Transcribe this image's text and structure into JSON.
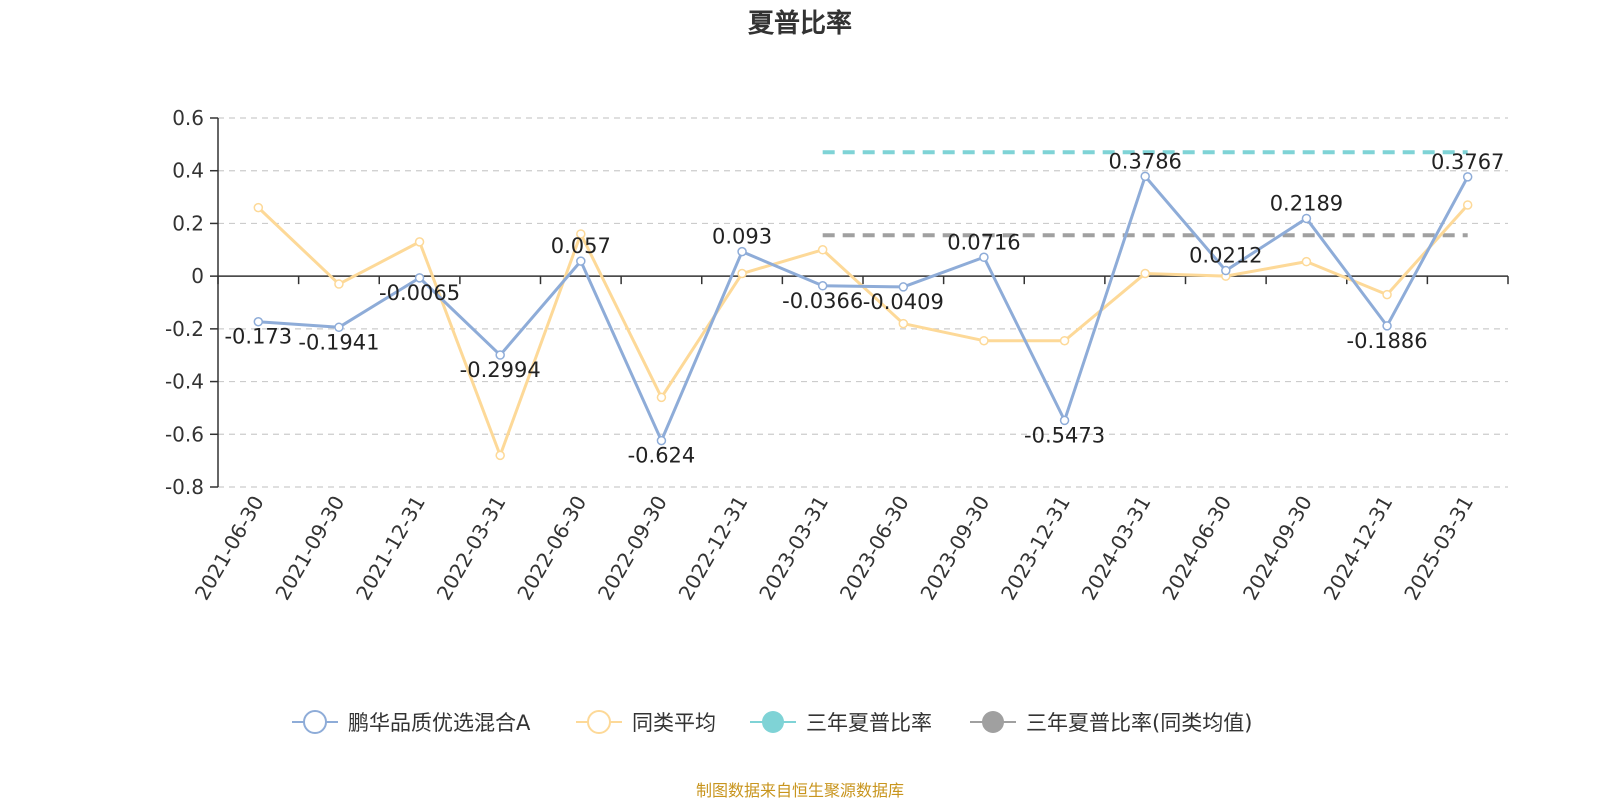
{
  "chart_data": {
    "type": "line",
    "title": "夏普比率",
    "categories": [
      "2021-06-30",
      "2021-09-30",
      "2021-12-31",
      "2022-03-31",
      "2022-06-30",
      "2022-09-30",
      "2022-12-31",
      "2023-03-31",
      "2023-06-30",
      "2023-09-30",
      "2023-12-31",
      "2024-03-31",
      "2024-06-30",
      "2024-09-30",
      "2024-12-31",
      "2025-03-31"
    ],
    "ylim": [
      -0.8,
      0.6
    ],
    "yticks": [
      "0.6",
      "0.4",
      "0.2",
      "0",
      "-0.2",
      "-0.4",
      "-0.6",
      "-0.8"
    ],
    "grid": true,
    "legend_position": "bottom",
    "series": [
      {
        "name": "鹏华品质优选混合A",
        "color": "#8eacd8",
        "values": [
          -0.173,
          -0.1941,
          -0.0065,
          -0.2994,
          0.057,
          -0.624,
          0.093,
          -0.0366,
          -0.0409,
          0.0716,
          -0.5473,
          0.3786,
          0.0212,
          0.2189,
          -0.1886,
          0.3767
        ],
        "labels": [
          "-0.173",
          "-0.1941",
          "-0.0065",
          "-0.2994",
          "0.057",
          "-0.624",
          "0.093",
          "-0.0366",
          "-0.0409",
          "0.0716",
          "-0.5473",
          "0.3786",
          "0.0212",
          "0.2189",
          "-0.1886",
          "0.3767"
        ]
      },
      {
        "name": "同类平均",
        "color": "#fdd998",
        "values": [
          0.26,
          -0.03,
          0.13,
          -0.68,
          0.16,
          -0.46,
          0.01,
          0.1,
          -0.18,
          -0.245,
          -0.245,
          0.01,
          0.0,
          0.055,
          -0.07,
          0.27
        ]
      },
      {
        "name": "三年夏普比率",
        "color": "#7fd3d6",
        "type": "dashed-reference",
        "value": 0.47,
        "from": "2023-03-31",
        "to": "2025-03-31"
      },
      {
        "name": "三年夏普比率(同类均值)",
        "color": "#a0a0a0",
        "type": "dashed-reference",
        "value": 0.155,
        "from": "2023-03-31",
        "to": "2025-03-31"
      }
    ]
  },
  "source": {
    "text": "制图数据来自恒生聚源数据库",
    "color": "#c8951e"
  }
}
